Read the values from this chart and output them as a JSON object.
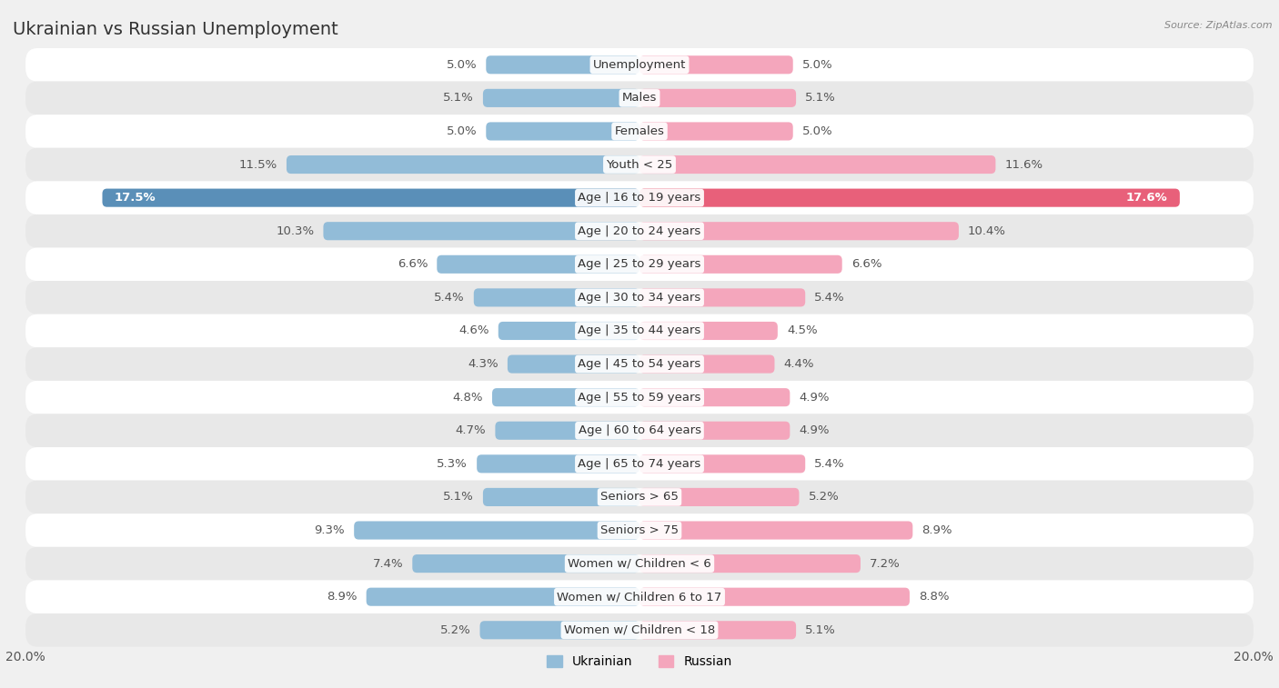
{
  "title": "Ukrainian vs Russian Unemployment",
  "source": "Source: ZipAtlas.com",
  "categories": [
    "Unemployment",
    "Males",
    "Females",
    "Youth < 25",
    "Age | 16 to 19 years",
    "Age | 20 to 24 years",
    "Age | 25 to 29 years",
    "Age | 30 to 34 years",
    "Age | 35 to 44 years",
    "Age | 45 to 54 years",
    "Age | 55 to 59 years",
    "Age | 60 to 64 years",
    "Age | 65 to 74 years",
    "Seniors > 65",
    "Seniors > 75",
    "Women w/ Children < 6",
    "Women w/ Children 6 to 17",
    "Women w/ Children < 18"
  ],
  "ukrainian": [
    5.0,
    5.1,
    5.0,
    11.5,
    17.5,
    10.3,
    6.6,
    5.4,
    4.6,
    4.3,
    4.8,
    4.7,
    5.3,
    5.1,
    9.3,
    7.4,
    8.9,
    5.2
  ],
  "russian": [
    5.0,
    5.1,
    5.0,
    11.6,
    17.6,
    10.4,
    6.6,
    5.4,
    4.5,
    4.4,
    4.9,
    4.9,
    5.4,
    5.2,
    8.9,
    7.2,
    8.8,
    5.1
  ],
  "ukrainian_color": "#92bcd8",
  "russian_color": "#f4a6bc",
  "highlight_ukrainian_color": "#5a8fb8",
  "highlight_russian_color": "#e8607a",
  "max_val": 20.0,
  "bg_color": "#f0f0f0",
  "row_color_even": "#ffffff",
  "row_color_odd": "#e8e8e8",
  "label_fontsize": 9.5,
  "title_fontsize": 14,
  "highlight_row": 4
}
